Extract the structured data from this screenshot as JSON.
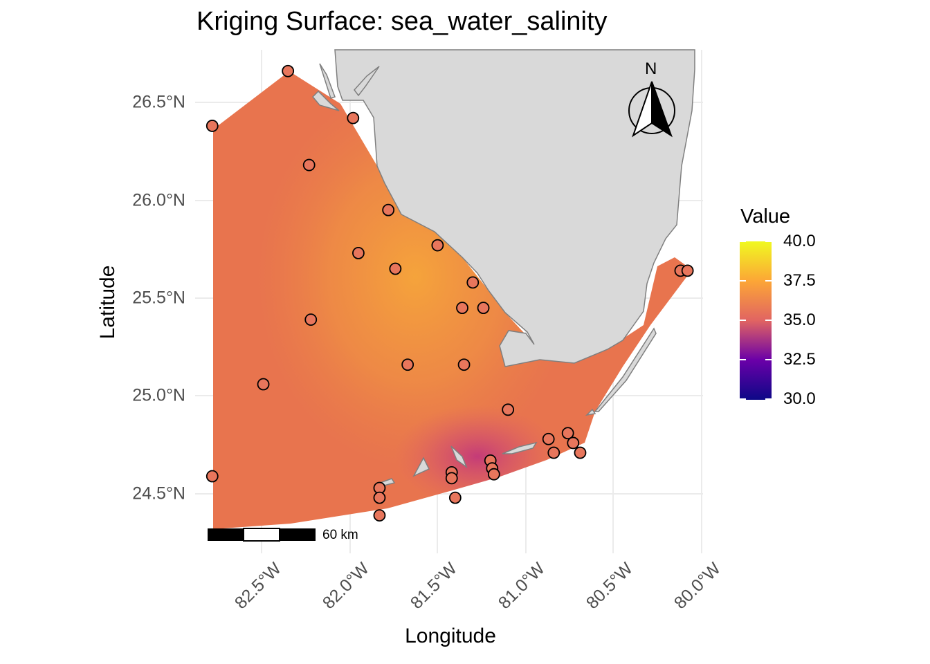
{
  "title": "Kriging Surface: sea_water_salinity",
  "x_axis_title": "Longitude",
  "y_axis_title": "Latitude",
  "x_ticks": [
    "82.5°W",
    "82.0°W",
    "81.5°W",
    "81.0°W",
    "80.5°W",
    "80.0°W"
  ],
  "y_ticks": [
    "26.5°N",
    "26.0°N",
    "25.5°N",
    "25.0°N",
    "24.5°N"
  ],
  "legend": {
    "title": "Value",
    "labels": [
      "40.0",
      "37.5",
      "35.0",
      "32.5",
      "30.0"
    ],
    "colors": [
      "#f0f921",
      "#fca636",
      "#e16462",
      "#b12a90",
      "#6a00a8",
      "#0d0887"
    ]
  },
  "scale_bar_label": "60 km",
  "north_arrow_label": "N",
  "colors": {
    "land": "#d9d9d9",
    "land_border": "#7f7f7f",
    "surface_base": "#e8744e",
    "surface_high": "#f5a13a",
    "surface_low": "#c2387a",
    "point_fill": "#e8765c",
    "grid": "#ebebeb"
  },
  "stations": [
    {
      "lon": -82.35,
      "lat": 26.66
    },
    {
      "lon": -82.78,
      "lat": 26.38
    },
    {
      "lon": -82.23,
      "lat": 26.18
    },
    {
      "lon": -81.98,
      "lat": 26.42
    },
    {
      "lon": -81.78,
      "lat": 25.95
    },
    {
      "lon": -81.5,
      "lat": 25.77
    },
    {
      "lon": -81.95,
      "lat": 25.73
    },
    {
      "lon": -81.74,
      "lat": 25.65
    },
    {
      "lon": -81.3,
      "lat": 25.58
    },
    {
      "lon": -81.36,
      "lat": 25.45
    },
    {
      "lon": -81.24,
      "lat": 25.45
    },
    {
      "lon": -82.22,
      "lat": 25.39
    },
    {
      "lon": -81.67,
      "lat": 25.16
    },
    {
      "lon": -81.35,
      "lat": 25.16
    },
    {
      "lon": -82.49,
      "lat": 25.06
    },
    {
      "lon": -81.1,
      "lat": 24.93
    },
    {
      "lon": -80.87,
      "lat": 24.78
    },
    {
      "lon": -80.76,
      "lat": 24.81
    },
    {
      "lon": -80.84,
      "lat": 24.71
    },
    {
      "lon": -80.73,
      "lat": 24.76
    },
    {
      "lon": -80.69,
      "lat": 24.71
    },
    {
      "lon": -81.2,
      "lat": 24.67
    },
    {
      "lon": -81.19,
      "lat": 24.63
    },
    {
      "lon": -81.18,
      "lat": 24.6
    },
    {
      "lon": -81.42,
      "lat": 24.61
    },
    {
      "lon": -81.42,
      "lat": 24.58
    },
    {
      "lon": -81.4,
      "lat": 24.48
    },
    {
      "lon": -81.83,
      "lat": 24.53
    },
    {
      "lon": -81.83,
      "lat": 24.48
    },
    {
      "lon": -81.83,
      "lat": 24.39
    },
    {
      "lon": -82.78,
      "lat": 24.59
    },
    {
      "lon": -80.12,
      "lat": 25.64
    },
    {
      "lon": -80.08,
      "lat": 25.64
    }
  ]
}
